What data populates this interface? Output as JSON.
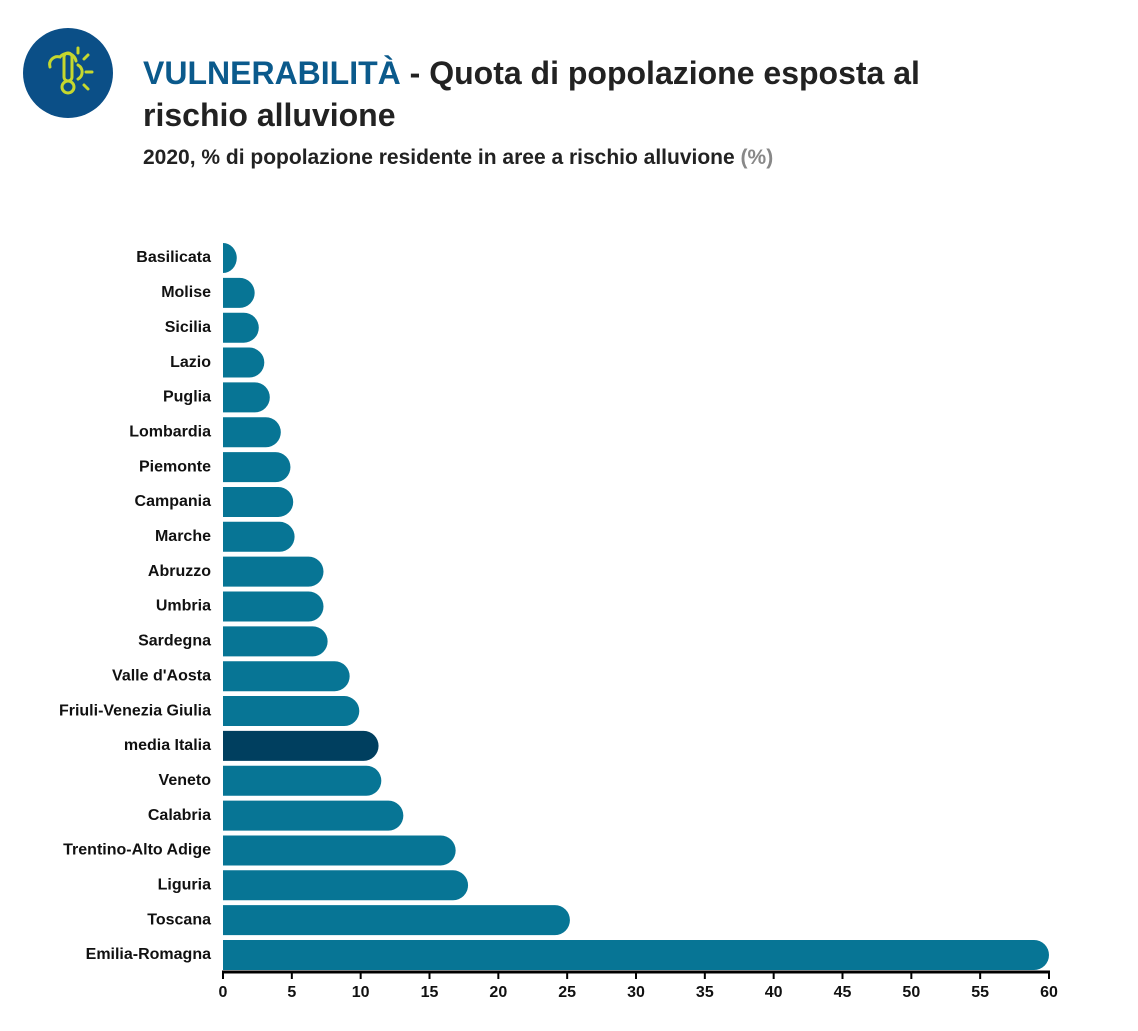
{
  "chart_data": {
    "type": "bar",
    "orientation": "horizontal",
    "title_highlight": "VULNERABILITÀ",
    "title": " - Quota di popolazione esposta al rischio alluvione",
    "subtitle": "2020, % di popolazione residente in aree a rischio alluvione",
    "subtitle_unit": "(%)",
    "categories": [
      "Basilicata",
      "Molise",
      "Sicilia",
      "Lazio",
      "Puglia",
      "Lombardia",
      "Piemonte",
      "Campania",
      "Marche",
      "Abruzzo",
      "Umbria",
      "Sardegna",
      "Valle d'Aosta",
      "Friuli-Venezia Giulia",
      "media Italia",
      "Veneto",
      "Calabria",
      "Trentino-Alto Adige",
      "Liguria",
      "Toscana",
      "Emilia-Romagna"
    ],
    "values": [
      1.0,
      2.3,
      2.6,
      3.0,
      3.4,
      4.2,
      4.9,
      5.1,
      5.2,
      7.3,
      7.3,
      7.6,
      9.2,
      9.9,
      11.3,
      11.5,
      13.1,
      16.9,
      17.8,
      25.2,
      60.0
    ],
    "colors": [
      "#077595",
      "#077595",
      "#077595",
      "#077595",
      "#077595",
      "#077595",
      "#077595",
      "#077595",
      "#077595",
      "#077595",
      "#077595",
      "#077595",
      "#077595",
      "#077595",
      "#003f5f",
      "#077595",
      "#077595",
      "#077595",
      "#077595",
      "#077595",
      "#077595"
    ],
    "xlim": [
      0,
      60
    ],
    "xticks": [
      0,
      5,
      10,
      15,
      20,
      25,
      30,
      35,
      40,
      45,
      50,
      55,
      60
    ]
  }
}
